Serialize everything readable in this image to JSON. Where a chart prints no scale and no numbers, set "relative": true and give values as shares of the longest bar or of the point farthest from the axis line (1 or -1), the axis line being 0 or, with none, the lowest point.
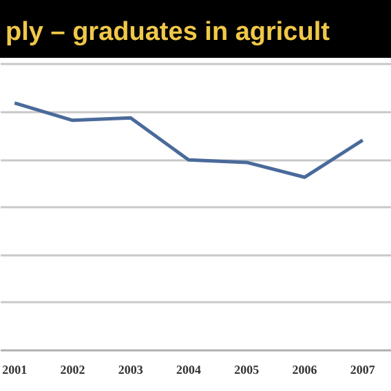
{
  "chart_data": {
    "type": "line",
    "title": "ply – graduates in agricult",
    "relative": true,
    "categories": [
      "2001",
      "2002",
      "2003",
      "2004",
      "2005",
      "2006",
      "2007"
    ],
    "series": [
      {
        "color": "#4a6a9a",
        "values": [
          1,
          0.93,
          0.94,
          0.77,
          0.76,
          0.7,
          0.85
        ]
      }
    ],
    "grid": "y",
    "line_style": "solid",
    "marker": "none"
  }
}
